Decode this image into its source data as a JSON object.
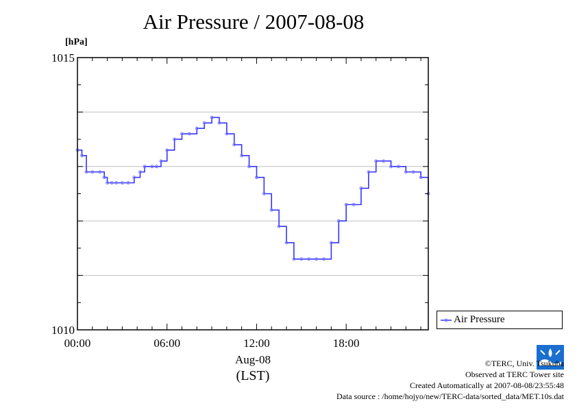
{
  "title": "Air Pressure / 2007-08-08",
  "unit_label": "[hPa]",
  "legend_label": "Air Pressure",
  "x_date_label": "Aug-08",
  "x_tz_label": "(LST)",
  "footer": {
    "copyright": "©TERC, Univ. Tsukuba",
    "observed": "Observed at TERC Tower site",
    "created": "Created Automatically at 2007-08-08/23:55:48",
    "source": "Data source : /home/hojyo/new/TERC-data/sorted_data/MET.10s.dat"
  },
  "colors": {
    "series": "#3333ff",
    "marker": "#8080ff",
    "grid": "#c0c0c0"
  },
  "icons": {
    "logo": "terc-logo-icon"
  },
  "chart_data": {
    "type": "line",
    "title": "Air Pressure / 2007-08-08",
    "ylabel": "[hPa]",
    "xlabel": "Aug-08 (LST)",
    "xlim": [
      0,
      23.5
    ],
    "ylim": [
      1010,
      1015
    ],
    "yticks": [
      1010,
      1015
    ],
    "ytick_labels": [
      "1010",
      "1015"
    ],
    "xticks": [
      0,
      6,
      12,
      18
    ],
    "xtick_labels": [
      "00:00",
      "06:00",
      "12:00",
      "18:00"
    ],
    "grid": true,
    "legend_position": "right, below plot",
    "series": [
      {
        "name": "Air Pressure",
        "x": [
          0,
          0.3,
          0.6,
          1.0,
          1.5,
          1.8,
          2.0,
          2.3,
          2.6,
          3.0,
          3.4,
          3.8,
          4.2,
          4.5,
          5.0,
          5.3,
          5.6,
          6.0,
          6.5,
          7.0,
          7.5,
          8.0,
          8.5,
          9.0,
          9.5,
          10.0,
          10.5,
          11.0,
          11.5,
          12.0,
          12.5,
          13.0,
          13.5,
          14.0,
          14.5,
          15.0,
          15.5,
          16.0,
          16.5,
          17.0,
          17.5,
          18.0,
          18.5,
          19.0,
          19.5,
          20.0,
          20.5,
          21.0,
          21.5,
          22.0,
          22.5,
          23.0,
          23.5
        ],
        "y": [
          1013.3,
          1013.2,
          1012.9,
          1012.9,
          1012.9,
          1012.8,
          1012.7,
          1012.7,
          1012.7,
          1012.7,
          1012.7,
          1012.8,
          1012.9,
          1013.0,
          1013.0,
          1013.0,
          1013.1,
          1013.3,
          1013.5,
          1013.6,
          1013.6,
          1013.7,
          1013.8,
          1013.9,
          1013.8,
          1013.6,
          1013.4,
          1013.2,
          1013.0,
          1012.8,
          1012.5,
          1012.2,
          1011.9,
          1011.6,
          1011.3,
          1011.3,
          1011.3,
          1011.3,
          1011.3,
          1011.6,
          1012.0,
          1012.3,
          1012.3,
          1012.6,
          1012.9,
          1013.1,
          1013.1,
          1013.0,
          1013.0,
          1012.9,
          1012.9,
          1012.8,
          1012.5
        ]
      }
    ]
  }
}
